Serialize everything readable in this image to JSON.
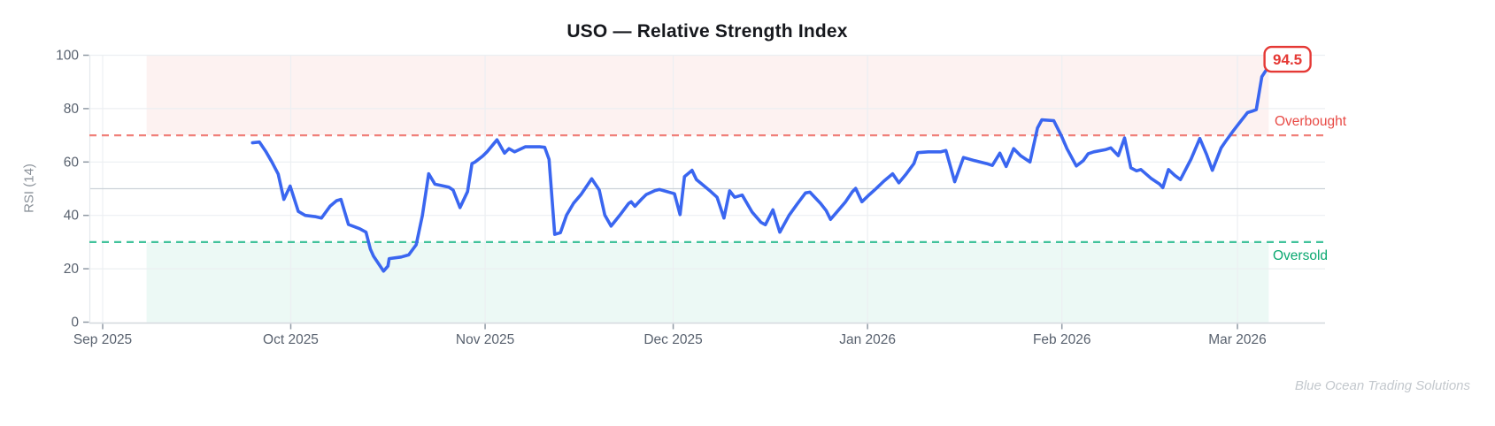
{
  "watermark": "Blue Ocean Trading Solutions",
  "colors": {
    "line": "#3a66f0",
    "overbought_line": "#f0807a",
    "overbought_text": "#e84a45",
    "oversold_line": "#41c29b",
    "oversold_text": "#0aa870",
    "overbought_band": "rgba(240,128,120,0.10)",
    "oversold_band": "rgba(65,194,155,0.10)",
    "badge_red": "#e53935",
    "grid": "#eceff2",
    "grid_mid": "#ccd2d8",
    "axis_line": "#d3d8dd",
    "tick_mark": "#8f99a4",
    "tick_label": "#59626f",
    "spine": "#e4e8ec"
  },
  "chart_data": {
    "type": "line",
    "title": "USO — Relative Strength Index",
    "ylabel": "RSI (14)",
    "ylim": [
      0,
      100
    ],
    "y_ticks": [
      0,
      20,
      40,
      60,
      80,
      100
    ],
    "mid_gridline": 50,
    "grid": true,
    "legend_position": "none",
    "x_unit": "days since 2025-09-01",
    "x_ticks": [
      {
        "label": "Sep 2025",
        "day": 0
      },
      {
        "label": "Oct 2025",
        "day": 30
      },
      {
        "label": "Nov 2025",
        "day": 61
      },
      {
        "label": "Dec 2025",
        "day": 91
      },
      {
        "label": "Jan 2026",
        "day": 122
      },
      {
        "label": "Feb 2026",
        "day": 153
      },
      {
        "label": "Mar 2026",
        "day": 181
      }
    ],
    "overbought": {
      "level": 70,
      "label": "Overbought"
    },
    "oversold": {
      "level": 30,
      "label": "Oversold"
    },
    "shaded_span_days": [
      7,
      186
    ],
    "last_value": 94.5,
    "last_value_label": "94.5",
    "series": [
      {
        "name": "RSI (14)",
        "points": [
          [
            23.9,
            67.2
          ],
          [
            25,
            67.5
          ],
          [
            26,
            64
          ],
          [
            27,
            60
          ],
          [
            28,
            55.5
          ],
          [
            28.9,
            46
          ],
          [
            29.9,
            51
          ],
          [
            31.2,
            41.5
          ],
          [
            32.3,
            40
          ],
          [
            34,
            39.5
          ],
          [
            34.9,
            39
          ],
          [
            36.3,
            43.5
          ],
          [
            37.3,
            45.5
          ],
          [
            38,
            46
          ],
          [
            39.2,
            36.6
          ],
          [
            41,
            35
          ],
          [
            42,
            33.7
          ],
          [
            42.7,
            27.4
          ],
          [
            43.2,
            24.7
          ],
          [
            44.8,
            19.1
          ],
          [
            45.5,
            21
          ],
          [
            45.7,
            23.8
          ],
          [
            47.6,
            24.4
          ],
          [
            48.8,
            25.2
          ],
          [
            50,
            29
          ],
          [
            51,
            40
          ],
          [
            52,
            55.6
          ],
          [
            53,
            51.7
          ],
          [
            55.2,
            50.6
          ],
          [
            55.9,
            49.5
          ],
          [
            57,
            42.9
          ],
          [
            58.2,
            48.9
          ],
          [
            58.9,
            59.4
          ],
          [
            59.4,
            60
          ],
          [
            60.6,
            62.2
          ],
          [
            61.3,
            63.8
          ],
          [
            62.9,
            68.3
          ],
          [
            64.1,
            63.3
          ],
          [
            64.8,
            65
          ],
          [
            65.7,
            63.8
          ],
          [
            67.4,
            65.7
          ],
          [
            69.7,
            65.7
          ],
          [
            70.5,
            65.5
          ],
          [
            71.2,
            61
          ],
          [
            72.1,
            32.9
          ],
          [
            73,
            33.5
          ],
          [
            74,
            40.1
          ],
          [
            75.1,
            44.5
          ],
          [
            76.3,
            47.8
          ],
          [
            78,
            53.7
          ],
          [
            79.2,
            49.5
          ],
          [
            80.1,
            40.1
          ],
          [
            81.1,
            36
          ],
          [
            82.5,
            40.1
          ],
          [
            83.9,
            44.5
          ],
          [
            84.3,
            45.1
          ],
          [
            84.9,
            43.4
          ],
          [
            86,
            46.2
          ],
          [
            86.7,
            47.8
          ],
          [
            88.1,
            49.3
          ],
          [
            88.8,
            49.7
          ],
          [
            91.2,
            48.1
          ],
          [
            92.1,
            40.3
          ],
          [
            92.8,
            54.5
          ],
          [
            94,
            56.9
          ],
          [
            94.7,
            53.4
          ],
          [
            95.6,
            51.7
          ],
          [
            97,
            48.9
          ],
          [
            98,
            46.8
          ],
          [
            99.1,
            39
          ],
          [
            100,
            49.2
          ],
          [
            100.8,
            46.8
          ],
          [
            102,
            47.6
          ],
          [
            103.6,
            41.2
          ],
          [
            105,
            37.4
          ],
          [
            105.7,
            36.5
          ],
          [
            106.9,
            42.1
          ],
          [
            108,
            33.7
          ],
          [
            109.5,
            40.1
          ],
          [
            110.7,
            44
          ],
          [
            112.1,
            48.4
          ],
          [
            112.8,
            48.7
          ],
          [
            114.5,
            44.5
          ],
          [
            115.4,
            41.8
          ],
          [
            116.1,
            38.5
          ],
          [
            117.3,
            41.8
          ],
          [
            118.5,
            45.1
          ],
          [
            119.6,
            48.9
          ],
          [
            120.1,
            50.1
          ],
          [
            121.1,
            45.1
          ],
          [
            122.3,
            47.8
          ],
          [
            123.4,
            50.1
          ],
          [
            124.6,
            52.8
          ],
          [
            126,
            55.6
          ],
          [
            127,
            52.2
          ],
          [
            128.2,
            55.6
          ],
          [
            129.4,
            59.4
          ],
          [
            130,
            63.5
          ],
          [
            131.7,
            63.8
          ],
          [
            133.7,
            63.8
          ],
          [
            134.5,
            64.3
          ],
          [
            135.9,
            52.6
          ],
          [
            137.3,
            61.7
          ],
          [
            139.1,
            60.5
          ],
          [
            141,
            59.4
          ],
          [
            141.9,
            58.7
          ],
          [
            143.1,
            63.3
          ],
          [
            144.1,
            58.3
          ],
          [
            145.3,
            65
          ],
          [
            146.4,
            62.4
          ],
          [
            147.9,
            60
          ],
          [
            149.1,
            72.7
          ],
          [
            149.8,
            75.8
          ],
          [
            151.7,
            75.5
          ],
          [
            152.9,
            69.9
          ],
          [
            153.8,
            65
          ],
          [
            155.3,
            58.5
          ],
          [
            156.4,
            60.5
          ],
          [
            157.2,
            63.1
          ],
          [
            158.1,
            63.8
          ],
          [
            159.9,
            64.6
          ],
          [
            160.8,
            65.3
          ],
          [
            162,
            62.4
          ],
          [
            163,
            69
          ],
          [
            164,
            57.8
          ],
          [
            164.9,
            56.7
          ],
          [
            165.6,
            57.2
          ],
          [
            167.2,
            53.9
          ],
          [
            168.6,
            51.7
          ],
          [
            169.1,
            50.4
          ],
          [
            170,
            57.2
          ],
          [
            171,
            55
          ],
          [
            171.9,
            53.4
          ],
          [
            173.6,
            61.1
          ],
          [
            175,
            68.8
          ],
          [
            176.1,
            62.7
          ],
          [
            177,
            56.9
          ],
          [
            178.4,
            65.3
          ],
          [
            179.1,
            67.7
          ],
          [
            180.3,
            71.6
          ],
          [
            181.2,
            74.3
          ],
          [
            182.6,
            78.5
          ],
          [
            183.3,
            79
          ],
          [
            184,
            79.6
          ],
          [
            184.9,
            92
          ],
          [
            185.6,
            94.5
          ]
        ]
      }
    ]
  }
}
